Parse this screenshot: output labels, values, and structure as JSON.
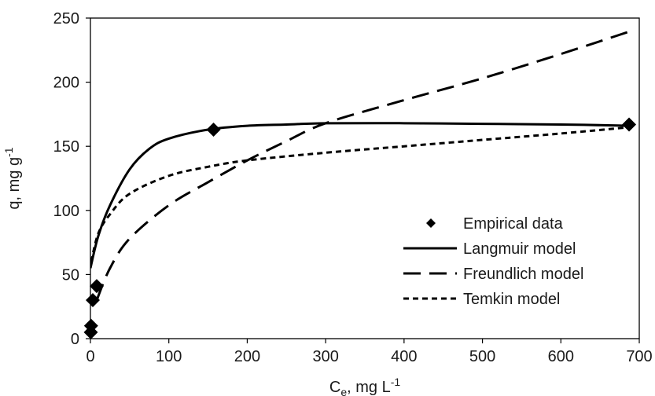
{
  "chart_data": {
    "type": "scatter",
    "xlabel": {
      "main": "C",
      "sub": "e",
      "rest": ", mg L",
      "sup": "-1"
    },
    "ylabel": {
      "main": "q, mg g",
      "sup": "-1"
    },
    "xlim": [
      0,
      700
    ],
    "ylim": [
      0,
      250
    ],
    "xticks": [
      0,
      100,
      200,
      300,
      400,
      500,
      600,
      700
    ],
    "yticks": [
      0,
      50,
      100,
      150,
      200,
      250
    ],
    "grid": false,
    "legend_position": "lower-right",
    "series": [
      {
        "name": "Empirical data",
        "kind": "markers",
        "marker": "diamond",
        "color": "#000000",
        "points": [
          [
            0.5,
            5
          ],
          [
            0.8,
            10
          ],
          [
            3,
            30
          ],
          [
            8,
            41
          ],
          [
            157,
            163
          ],
          [
            687,
            167
          ]
        ]
      },
      {
        "name": "Langmuir model",
        "kind": "line",
        "dash": "solid",
        "color": "#000000",
        "points": [
          [
            0,
            55
          ],
          [
            10,
            80
          ],
          [
            25,
            104
          ],
          [
            50,
            132
          ],
          [
            75,
            148
          ],
          [
            100,
            156
          ],
          [
            150,
            163
          ],
          [
            200,
            166
          ],
          [
            250,
            167
          ],
          [
            300,
            168
          ],
          [
            400,
            168
          ],
          [
            500,
            167.5
          ],
          [
            600,
            167
          ],
          [
            690,
            166
          ]
        ]
      },
      {
        "name": "Freundlich model",
        "kind": "line",
        "dash": "long-dash",
        "color": "#000000",
        "points": [
          [
            8,
            30
          ],
          [
            25,
            55
          ],
          [
            50,
            78
          ],
          [
            100,
            104
          ],
          [
            150,
            122
          ],
          [
            200,
            139
          ],
          [
            250,
            154
          ],
          [
            300,
            168
          ],
          [
            400,
            186
          ],
          [
            500,
            203
          ],
          [
            600,
            222
          ],
          [
            690,
            240
          ]
        ]
      },
      {
        "name": "Temkin model",
        "kind": "line",
        "dash": "short-dash",
        "color": "#000000",
        "points": [
          [
            1,
            60
          ],
          [
            10,
            82
          ],
          [
            25,
            97
          ],
          [
            50,
            113
          ],
          [
            100,
            127
          ],
          [
            150,
            134
          ],
          [
            200,
            139
          ],
          [
            300,
            145
          ],
          [
            400,
            150
          ],
          [
            500,
            155
          ],
          [
            600,
            160
          ],
          [
            690,
            165
          ]
        ]
      }
    ]
  }
}
